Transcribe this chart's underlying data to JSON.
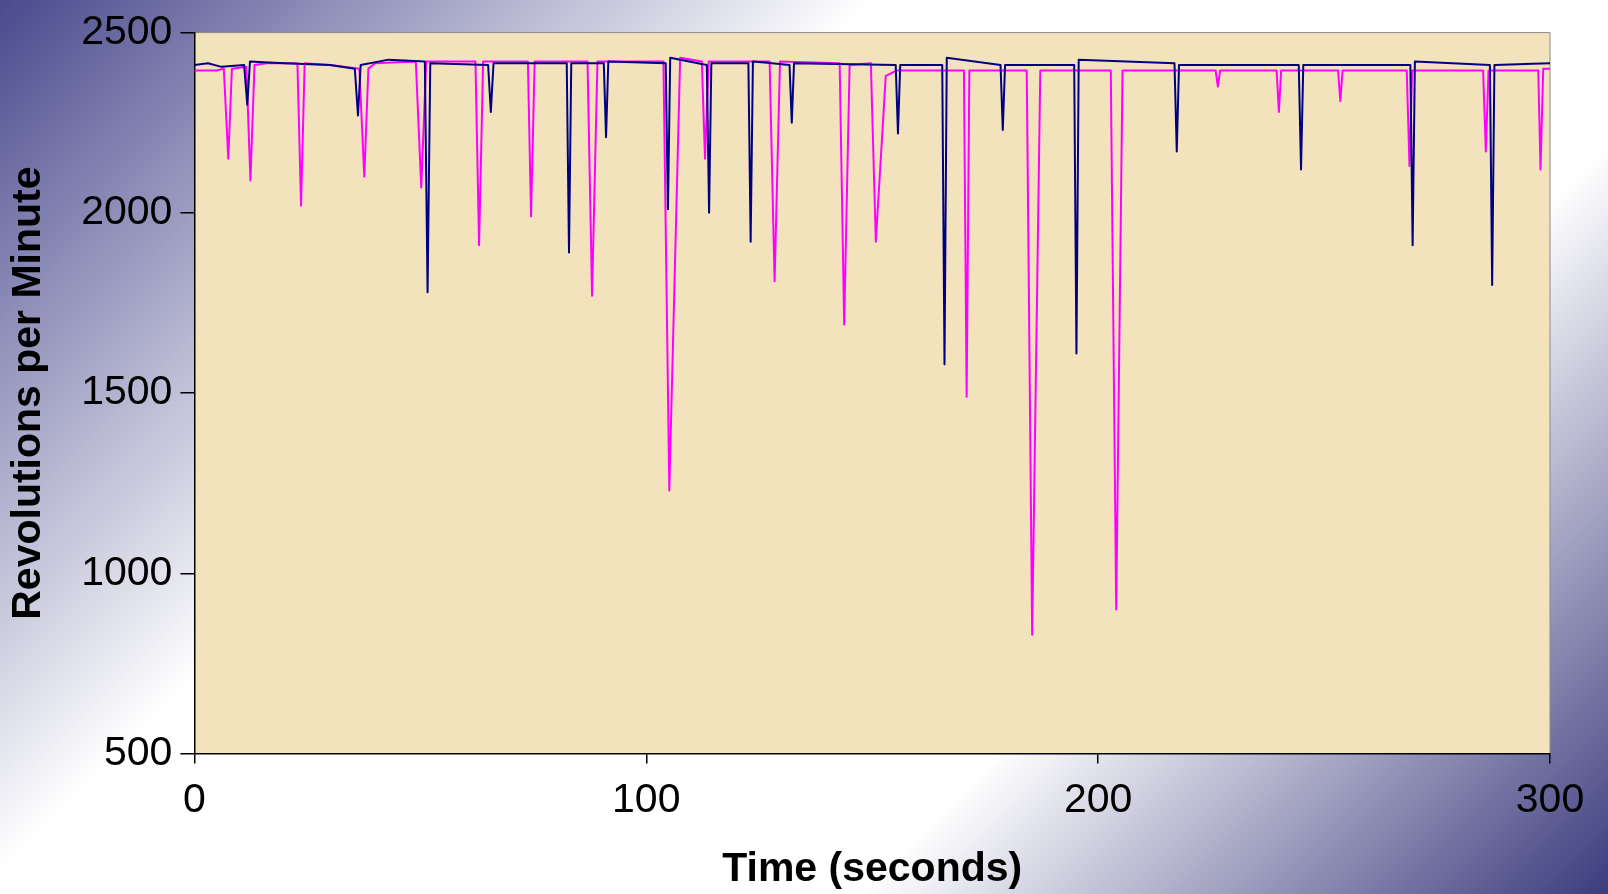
{
  "chart_data": {
    "type": "line",
    "xlabel": "Time (seconds)",
    "ylabel": "Revolutions per Minute",
    "xlim": [
      0,
      300
    ],
    "xticks": [
      0,
      100,
      200,
      300
    ],
    "ylim": [
      500,
      2500
    ],
    "yticks": [
      500,
      1000,
      1500,
      2000,
      2500
    ],
    "grid": false,
    "legend": false,
    "marker": "none",
    "line_style": "solid",
    "series": [
      {
        "color": "#000080",
        "x": [
          0,
          3,
          6,
          11,
          11.7,
          12.3,
          20,
          30,
          35.5,
          36.2,
          36.8,
          43,
          51,
          51.6,
          52.2,
          65,
          65.6,
          66.2,
          82.4,
          82.9,
          83.4,
          90.6,
          91.1,
          91.6,
          104.3,
          104.8,
          105.3,
          113.4,
          113.9,
          114.4,
          122.6,
          123.1,
          123.6,
          131.7,
          132.2,
          132.7,
          155.2,
          155.7,
          156.2,
          165.5,
          166,
          166.5,
          178.4,
          178.9,
          179.4,
          194.7,
          195.2,
          195.7,
          216.9,
          217.4,
          217.9,
          244.4,
          244.9,
          245.4,
          269.1,
          269.6,
          270.1,
          286.7,
          287.2,
          287.7,
          300
        ],
        "values": [
          2410,
          2415,
          2405,
          2410,
          2300,
          2420,
          2415,
          2410,
          2400,
          2270,
          2410,
          2425,
          2420,
          1780,
          2415,
          2410,
          2280,
          2415,
          2415,
          1890,
          2415,
          2415,
          2210,
          2420,
          2415,
          2010,
          2430,
          2410,
          2000,
          2415,
          2415,
          1920,
          2420,
          2410,
          2250,
          2415,
          2410,
          2220,
          2410,
          2410,
          1580,
          2430,
          2410,
          2230,
          2410,
          2410,
          1610,
          2425,
          2415,
          2170,
          2410,
          2410,
          2120,
          2410,
          2410,
          1910,
          2420,
          2410,
          1800,
          2410,
          2415
        ]
      },
      {
        "color": "#ff00ff",
        "x": [
          0,
          5,
          6.5,
          7.5,
          8.3,
          11.5,
          12.4,
          13.3,
          16,
          22.8,
          23.6,
          24.4,
          30,
          36.5,
          37.6,
          38.5,
          40,
          49,
          50.2,
          51.3,
          62.2,
          63,
          63.9,
          73.8,
          74.5,
          75.3,
          87,
          88,
          89.2,
          103.8,
          105.1,
          107.5,
          112.3,
          113,
          113.8,
          127.3,
          128.4,
          129.6,
          142.8,
          143.8,
          145,
          149.7,
          150.8,
          153,
          155.5,
          170.3,
          170.9,
          171.5,
          184.2,
          185.4,
          187.2,
          202.8,
          204,
          205.4,
          226,
          226.5,
          227,
          239.5,
          240,
          240.5,
          253.1,
          253.6,
          254.1,
          268.3,
          268.9,
          269.5,
          285.2,
          285.8,
          286.4,
          297.4,
          297.9,
          298.5,
          300
        ],
        "values": [
          2395,
          2395,
          2400,
          2150,
          2400,
          2405,
          2090,
          2410,
          2415,
          2415,
          2020,
          2415,
          2410,
          2400,
          2100,
          2400,
          2415,
          2420,
          2070,
          2420,
          2420,
          1910,
          2420,
          2420,
          1990,
          2420,
          2420,
          1770,
          2420,
          2420,
          1230,
          2430,
          2420,
          2150,
          2420,
          2420,
          1810,
          2420,
          2415,
          1690,
          2410,
          2415,
          1920,
          2380,
          2395,
          2395,
          1490,
          2395,
          2395,
          830,
          2395,
          2395,
          900,
          2395,
          2395,
          2350,
          2395,
          2395,
          2280,
          2395,
          2395,
          2310,
          2395,
          2395,
          2130,
          2395,
          2395,
          2170,
          2395,
          2395,
          2120,
          2400,
          2400
        ]
      }
    ]
  }
}
